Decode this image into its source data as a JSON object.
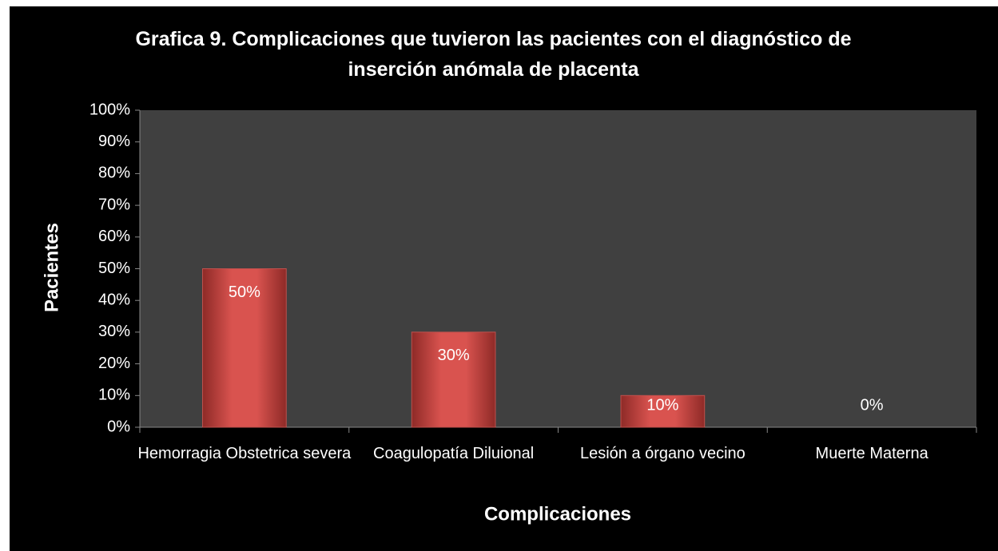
{
  "chart_data": {
    "type": "bar",
    "title": "Grafica 9. Complicaciones que tuvieron las pacientes con el diagnóstico de inserción anómala de placenta",
    "categories": [
      "Hemorragia Obstetrica severa",
      "Coagulopatía Diluional",
      "Lesión a órgano vecino",
      "Muerte Materna"
    ],
    "values": [
      50,
      30,
      10,
      0
    ],
    "value_labels": [
      "50%",
      "30%",
      "10%",
      "0%"
    ],
    "color": "#c0504d",
    "x_label": "Complicaciones",
    "y_label": "Pacientes",
    "ylim": [
      0,
      100
    ],
    "yticks": [
      {
        "value": 0,
        "label": "0%"
      },
      {
        "value": 10,
        "label": "10%"
      },
      {
        "value": 20,
        "label": "20%"
      },
      {
        "value": 30,
        "label": "30%"
      },
      {
        "value": 40,
        "label": "40%"
      },
      {
        "value": 50,
        "label": "50%"
      },
      {
        "value": 60,
        "label": "60%"
      },
      {
        "value": 70,
        "label": "70%"
      },
      {
        "value": 80,
        "label": "80%"
      },
      {
        "value": 90,
        "label": "90%"
      },
      {
        "value": 100,
        "label": "100%"
      }
    ],
    "grid": false
  }
}
